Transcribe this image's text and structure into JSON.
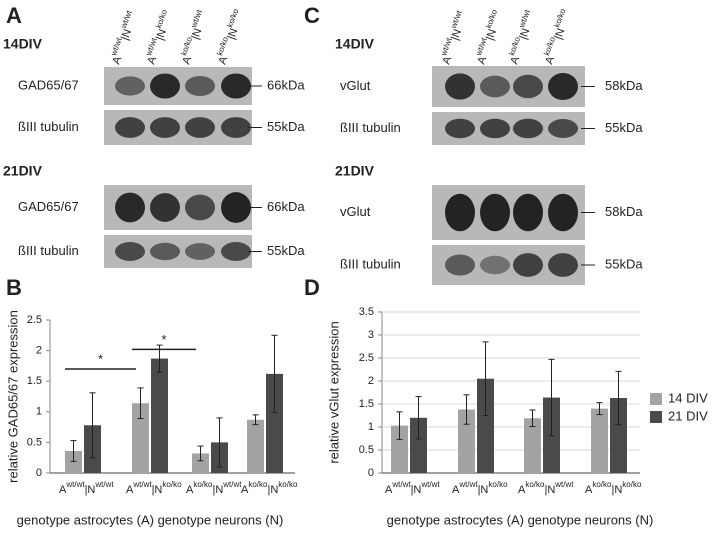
{
  "panels": [
    "A",
    "B",
    "C",
    "D"
  ],
  "blots": [
    {
      "lanes": [
        {
          "astrocytes": "wt/wt",
          "neurons": "wt/wt"
        },
        {
          "astrocytes": "wt/wt",
          "neurons": "ko/ko"
        },
        {
          "astrocytes": "ko/ko",
          "neurons": "wt/wt"
        },
        {
          "astrocytes": "ko/ko",
          "neurons": "ko/ko"
        }
      ],
      "lane_prefixes": [
        "A",
        "|N"
      ],
      "blocks": [
        {
          "title": "14DIV",
          "rows": [
            {
              "label": "GAD65/67",
              "marker": "66kDa"
            },
            {
              "label": "ßIII tubulin",
              "marker": "55kDa"
            }
          ]
        },
        {
          "title": "21DIV",
          "rows": [
            {
              "label": "GAD65/67",
              "marker": "66kDa"
            },
            {
              "label": "ßIII tubulin",
              "marker": "55kDa"
            }
          ]
        }
      ]
    },
    {
      "lanes": [
        {
          "astrocytes": "wt/wt",
          "neurons": "wt/wt"
        },
        {
          "astrocytes": "wt/wt",
          "neurons": "ko/ko"
        },
        {
          "astrocytes": "ko/ko",
          "neurons": "wt/wt"
        },
        {
          "astrocytes": "ko/ko",
          "neurons": "ko/ko"
        }
      ],
      "lane_prefixes": [
        "A",
        "|N"
      ],
      "blocks": [
        {
          "title": "14DIV",
          "rows": [
            {
              "label": "vGlut",
              "marker": "58kDa"
            },
            {
              "label": "ßIII tubulin",
              "marker": "55kDa"
            }
          ]
        },
        {
          "title": "21DIV",
          "rows": [
            {
              "label": "vGlut",
              "marker": "58kDa"
            },
            {
              "label": "ßIII tubulin",
              "marker": "55kDa"
            }
          ]
        }
      ]
    }
  ],
  "chart_data": [
    {
      "type": "bar",
      "y_label": "relative GAD65/67 expression",
      "x_label": "genotype astrocytes (A) genotype neurons (N)",
      "categories": [
        {
          "astrocytes": "wt/wt",
          "neurons": "wt/wt"
        },
        {
          "astrocytes": "wt/wt",
          "neurons": "ko/ko"
        },
        {
          "astrocytes": "ko/ko",
          "neurons": "wt/wt"
        },
        {
          "astrocytes": "ko/ko",
          "neurons": "ko/ko"
        }
      ],
      "category_prefixes": [
        "A",
        "|N"
      ],
      "series": [
        {
          "color": "#a3a3a3",
          "values": [
            0.36,
            1.14,
            0.32,
            0.87
          ],
          "errors": [
            0.17,
            0.25,
            0.12,
            0.08
          ]
        },
        {
          "color": "#4a4a4a",
          "values": [
            0.78,
            1.87,
            0.5,
            1.62
          ],
          "errors": [
            0.53,
            0.22,
            0.4,
            0.63
          ]
        }
      ],
      "ylim": [
        0,
        2.5
      ],
      "yticks": [
        0,
        0.5,
        1,
        1.5,
        2,
        2.5
      ],
      "grid": false,
      "significance": [
        {
          "label": "*",
          "groups": [
            0,
            1
          ],
          "y": 1.7
        },
        {
          "label": "*",
          "groups": [
            1,
            2
          ],
          "y": 2.02
        }
      ]
    },
    {
      "type": "bar",
      "y_label": "relative vGlut expression",
      "x_label": "genotype astrocytes (A) genotype neurons (N)",
      "categories": [
        {
          "astrocytes": "wt/wt",
          "neurons": "wt/wt"
        },
        {
          "astrocytes": "wt/wt",
          "neurons": "ko/ko"
        },
        {
          "astrocytes": "ko/ko",
          "neurons": "wt/wt"
        },
        {
          "astrocytes": "ko/ko",
          "neurons": "ko/ko"
        }
      ],
      "category_prefixes": [
        "A",
        "|N"
      ],
      "series": [
        {
          "name": "14 DIV",
          "color": "#a3a3a3",
          "values": [
            1.03,
            1.38,
            1.19,
            1.4
          ],
          "errors": [
            0.3,
            0.32,
            0.18,
            0.13
          ]
        },
        {
          "name": "21 DIV",
          "color": "#4a4a4a",
          "values": [
            1.2,
            2.05,
            1.64,
            1.63
          ],
          "errors": [
            0.46,
            0.8,
            0.83,
            0.58
          ]
        }
      ],
      "ylim": [
        0,
        3.5
      ],
      "yticks": [
        0,
        0.5,
        1,
        1.5,
        2,
        2.5,
        3,
        3.5
      ],
      "grid": true,
      "legend": "right"
    }
  ]
}
